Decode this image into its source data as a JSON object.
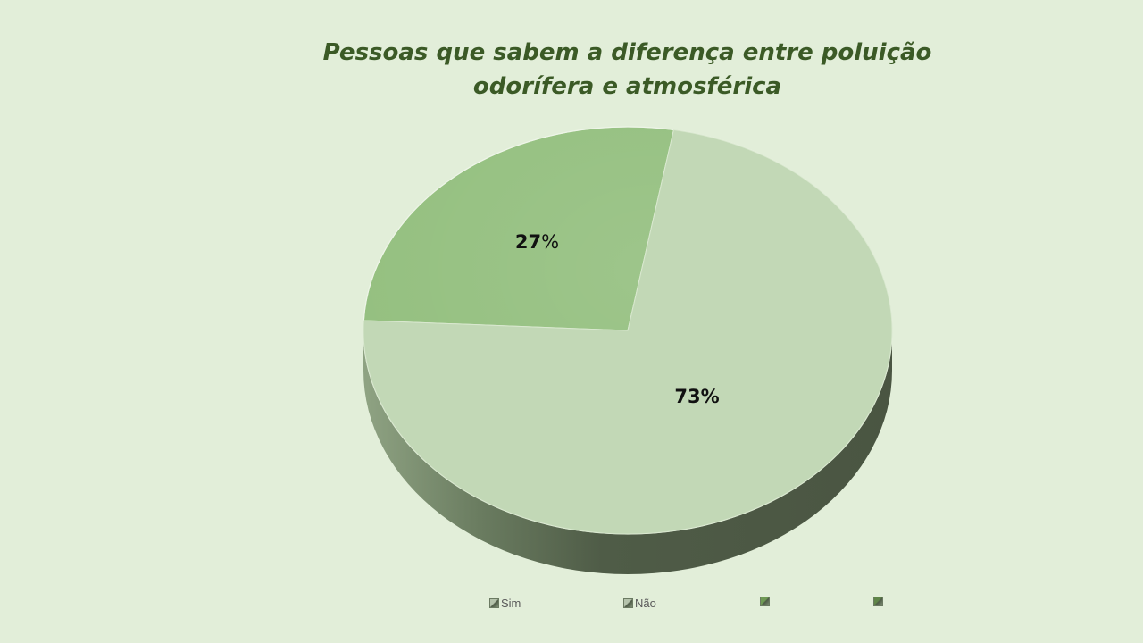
{
  "chart_data": {
    "type": "pie",
    "title": "Pessoas que sabem a diferença entre poluição odorífera e atmosférica",
    "categories": [
      "Sim",
      "Não"
    ],
    "values": [
      27,
      73
    ],
    "labels": [
      "27%",
      "73%"
    ],
    "colors": [
      "#93bf7e",
      "#c2d8b6"
    ],
    "legend_entries": [
      "Sim",
      "Não",
      "",
      ""
    ],
    "legend_colors": [
      "#b5c3ac",
      "#b5c3ac",
      "#6f9a55",
      "#5f8548"
    ],
    "legend_position": "bottom",
    "style": "3d"
  }
}
